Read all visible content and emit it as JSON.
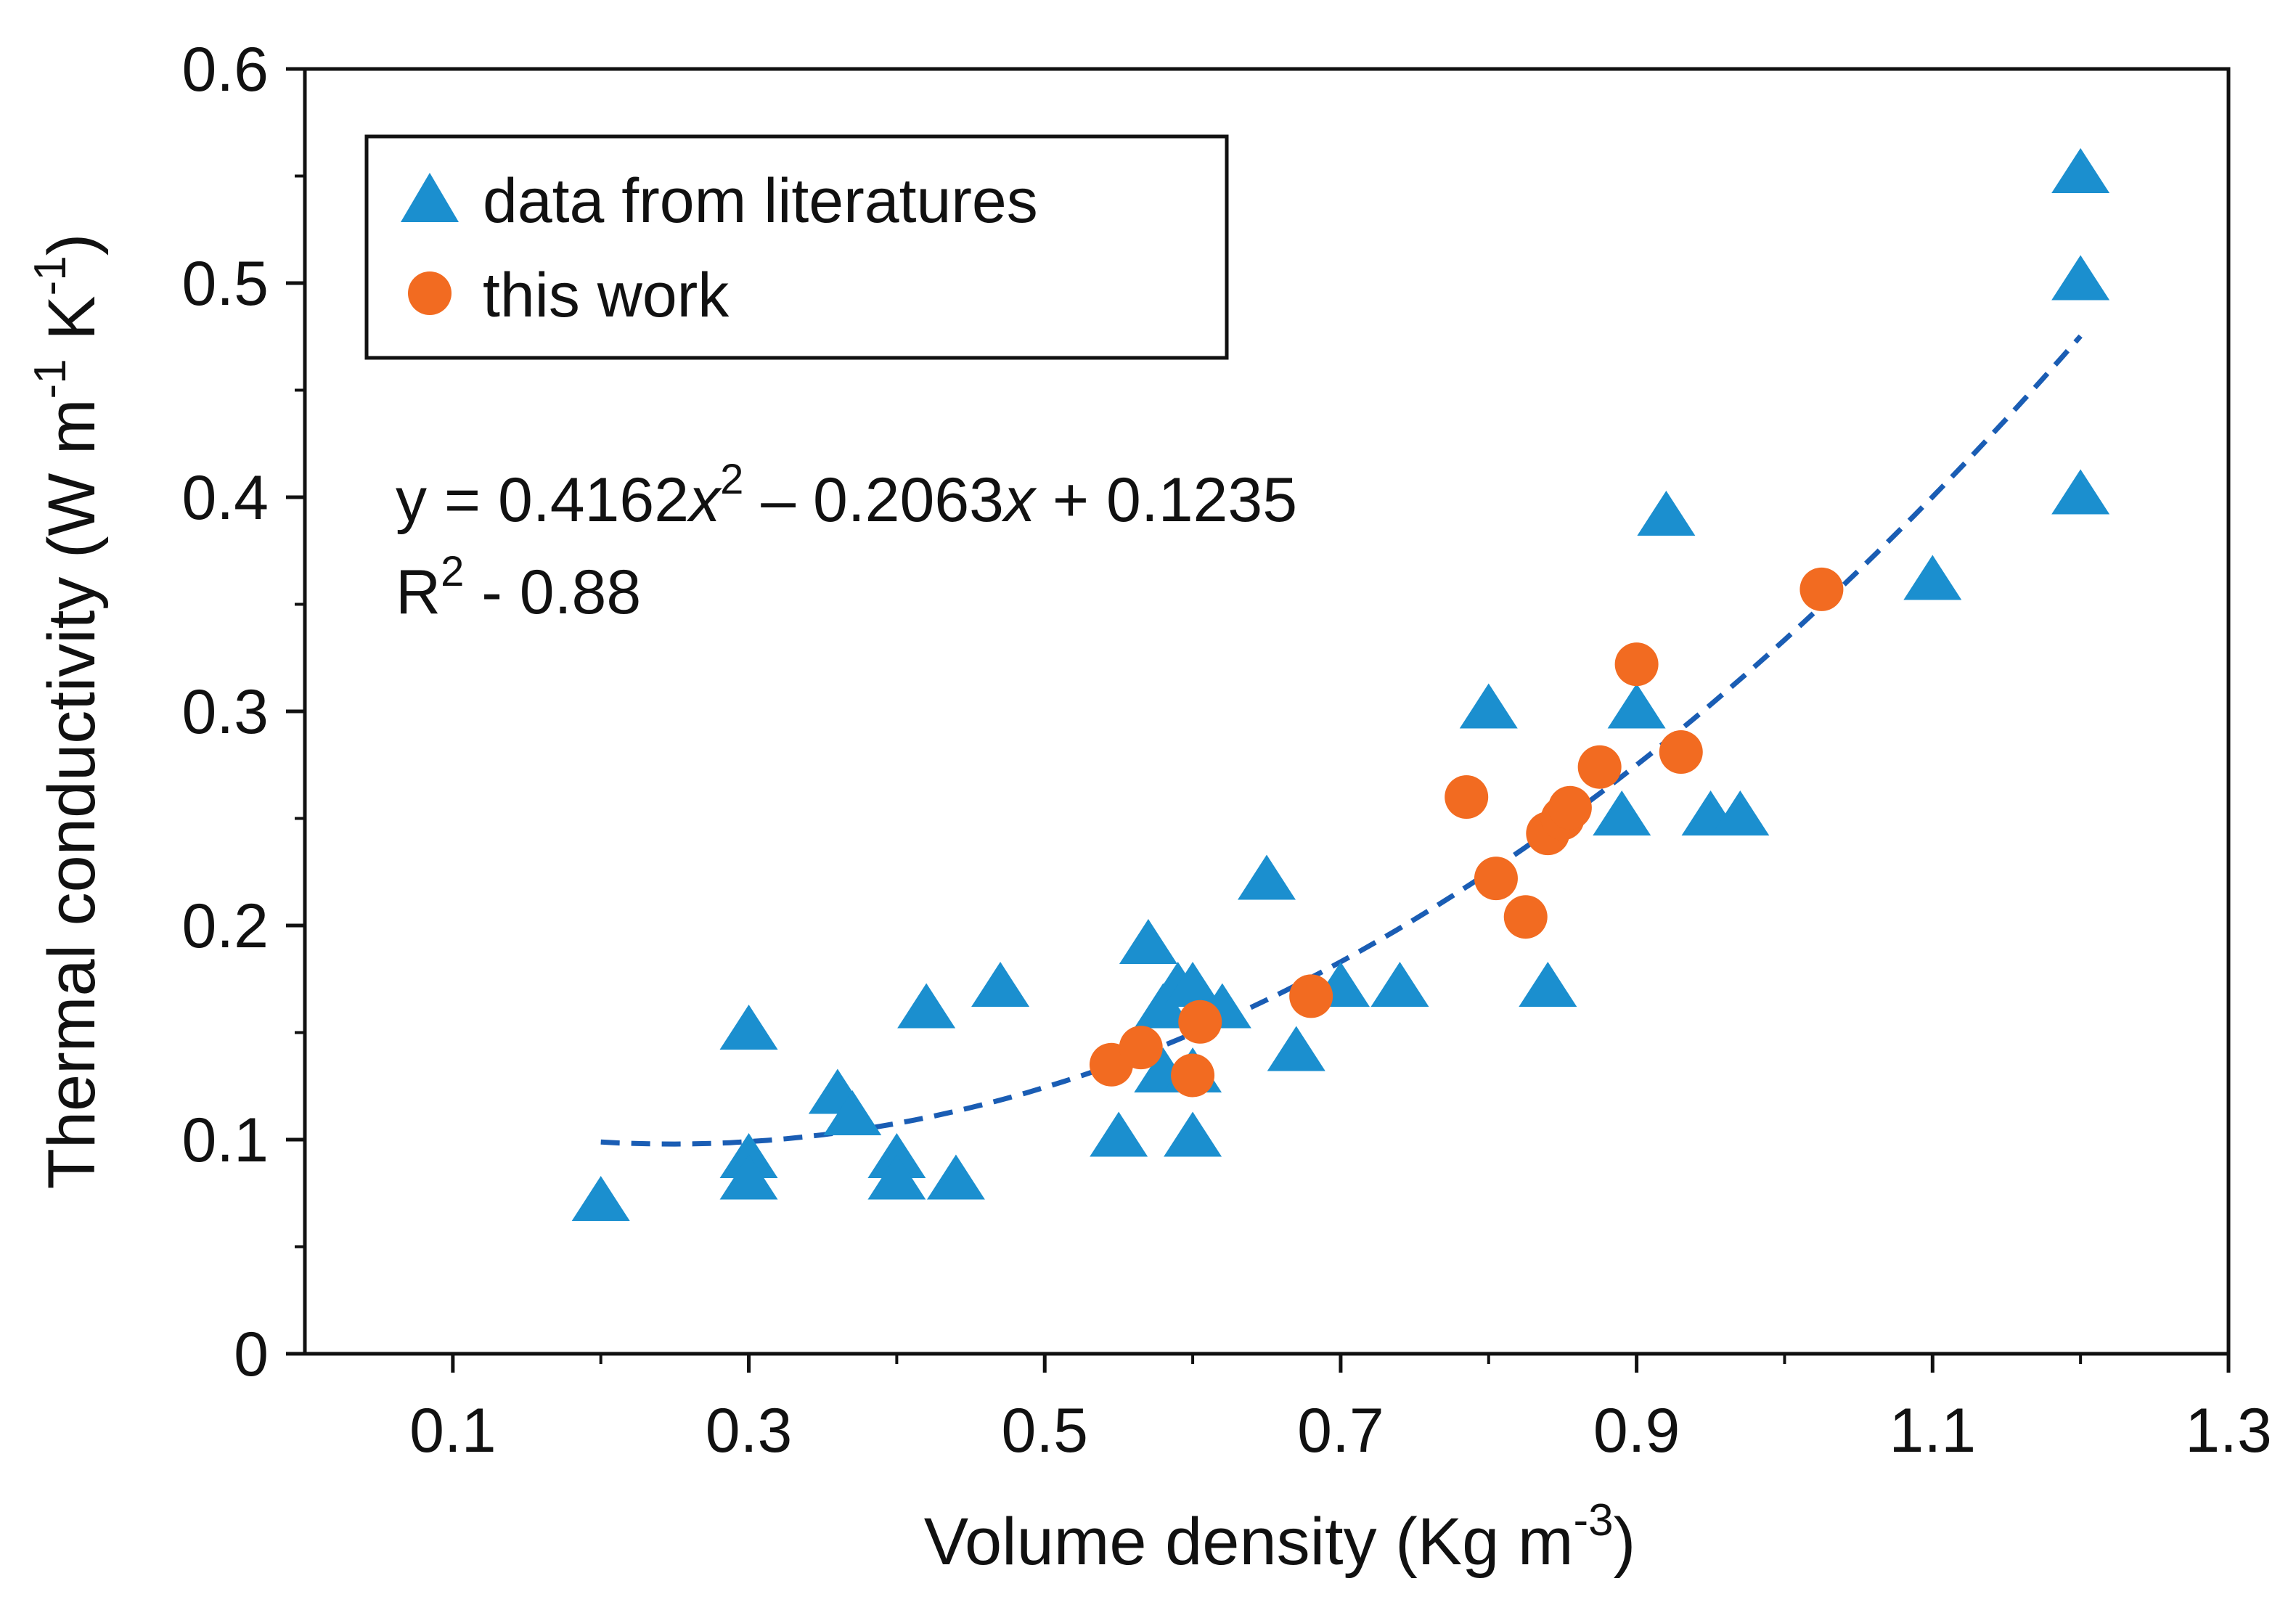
{
  "chart_data": {
    "type": "scatter",
    "title": "",
    "xlabel": "Volume density (Kg m",
    "xlabel_sup": "-3",
    "xlabel_end": ")",
    "ylabel_parts": [
      "Thermal conductivity (W m",
      "-1",
      " K",
      "-1",
      ")"
    ],
    "xlim": [
      0.0,
      1.3
    ],
    "ylim": [
      0.0,
      0.6
    ],
    "x_ticks": [
      0.1,
      0.3,
      0.5,
      0.7,
      0.9,
      1.1,
      1.3
    ],
    "x_tick_labels": [
      "0.1",
      "0.3",
      "0.5",
      "0.7",
      "0.9",
      "1.1",
      "1.3"
    ],
    "x_minor_ticks": [
      0.2,
      0.4,
      0.6,
      0.8,
      1.0,
      1.2
    ],
    "y_ticks": [
      0,
      0.1,
      0.2,
      0.3,
      0.4,
      0.5,
      0.6
    ],
    "y_tick_labels": [
      "0",
      "0.1",
      "0.2",
      "0.3",
      "0.4",
      "0.5",
      "0.6"
    ],
    "y_minor_ticks": [
      0.05,
      0.15,
      0.25,
      0.35,
      0.45,
      0.55
    ],
    "grid": false,
    "legend_position": "top-left",
    "series": [
      {
        "name": "data from literatures",
        "marker": "triangle",
        "color": "#1B8FCF",
        "points": [
          [
            0.2,
            0.07
          ],
          [
            0.3,
            0.15
          ],
          [
            0.3,
            0.09
          ],
          [
            0.3,
            0.08
          ],
          [
            0.36,
            0.12
          ],
          [
            0.37,
            0.11
          ],
          [
            0.4,
            0.09
          ],
          [
            0.4,
            0.08
          ],
          [
            0.42,
            0.16
          ],
          [
            0.44,
            0.08
          ],
          [
            0.47,
            0.17
          ],
          [
            0.55,
            0.1
          ],
          [
            0.57,
            0.19
          ],
          [
            0.58,
            0.16
          ],
          [
            0.58,
            0.13
          ],
          [
            0.59,
            0.17
          ],
          [
            0.6,
            0.17
          ],
          [
            0.6,
            0.1
          ],
          [
            0.6,
            0.13
          ],
          [
            0.62,
            0.16
          ],
          [
            0.65,
            0.22
          ],
          [
            0.67,
            0.14
          ],
          [
            0.7,
            0.17
          ],
          [
            0.74,
            0.17
          ],
          [
            0.8,
            0.3
          ],
          [
            0.84,
            0.17
          ],
          [
            0.89,
            0.25
          ],
          [
            0.9,
            0.3
          ],
          [
            0.92,
            0.39
          ],
          [
            0.95,
            0.25
          ],
          [
            0.97,
            0.25
          ],
          [
            1.1,
            0.36
          ],
          [
            1.2,
            0.55
          ],
          [
            1.2,
            0.5
          ],
          [
            1.2,
            0.4
          ]
        ]
      },
      {
        "name": "this work",
        "marker": "circle",
        "color": "#F26B21",
        "points": [
          [
            0.545,
            0.135
          ],
          [
            0.565,
            0.143
          ],
          [
            0.6,
            0.13
          ],
          [
            0.605,
            0.155
          ],
          [
            0.68,
            0.167
          ],
          [
            0.785,
            0.26
          ],
          [
            0.805,
            0.222
          ],
          [
            0.825,
            0.204
          ],
          [
            0.84,
            0.243
          ],
          [
            0.85,
            0.25
          ],
          [
            0.855,
            0.255
          ],
          [
            0.875,
            0.274
          ],
          [
            0.9,
            0.322
          ],
          [
            0.93,
            0.281
          ],
          [
            1.025,
            0.357
          ]
        ]
      }
    ],
    "fit": {
      "type": "quadratic",
      "coefficients": [
        0.4162,
        -0.2063,
        0.1235
      ],
      "x_range": [
        0.2,
        1.2
      ],
      "style": "dashed",
      "color": "#1A5DB4",
      "equation_parts": [
        "y = 0.4162",
        "x",
        "2",
        " – 0.2063",
        "x",
        " + 0.1235"
      ],
      "r2_parts": [
        "R",
        "2",
        " - 0.88"
      ]
    }
  }
}
